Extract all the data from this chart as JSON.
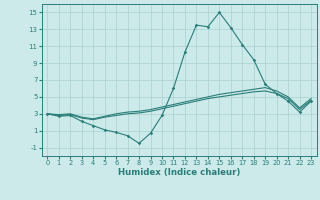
{
  "xlabel": "Humidex (Indice chaleur)",
  "ylabel": "",
  "x_values": [
    0,
    1,
    2,
    3,
    4,
    5,
    6,
    7,
    8,
    9,
    10,
    11,
    12,
    13,
    14,
    15,
    16,
    17,
    18,
    19,
    20,
    21,
    22,
    23
  ],
  "line1_y": [
    3.0,
    2.7,
    2.8,
    2.1,
    1.6,
    1.1,
    0.8,
    0.4,
    -0.5,
    0.7,
    2.8,
    6.0,
    10.3,
    13.5,
    13.3,
    15.0,
    13.2,
    11.2,
    9.4,
    6.5,
    5.4,
    4.5,
    3.2,
    4.5
  ],
  "line2_y": [
    3.0,
    2.8,
    2.9,
    2.5,
    2.3,
    2.6,
    2.8,
    3.0,
    3.1,
    3.3,
    3.6,
    3.9,
    4.2,
    4.5,
    4.8,
    5.0,
    5.2,
    5.4,
    5.6,
    5.7,
    5.4,
    4.8,
    3.5,
    4.6
  ],
  "line3_y": [
    3.0,
    2.9,
    3.0,
    2.6,
    2.4,
    2.7,
    3.0,
    3.2,
    3.3,
    3.5,
    3.8,
    4.1,
    4.4,
    4.7,
    5.0,
    5.3,
    5.5,
    5.7,
    5.9,
    6.1,
    5.7,
    5.0,
    3.7,
    4.8
  ],
  "line_color": "#2a7d78",
  "bg_color": "#cceaea",
  "grid_color": "#aacfcf",
  "ylim": [
    -2,
    16
  ],
  "xlim": [
    -0.5,
    23.5
  ],
  "yticks": [
    -1,
    1,
    3,
    5,
    7,
    9,
    11,
    13,
    15
  ],
  "xticks": [
    0,
    1,
    2,
    3,
    4,
    5,
    6,
    7,
    8,
    9,
    10,
    11,
    12,
    13,
    14,
    15,
    16,
    17,
    18,
    19,
    20,
    21,
    22,
    23
  ]
}
